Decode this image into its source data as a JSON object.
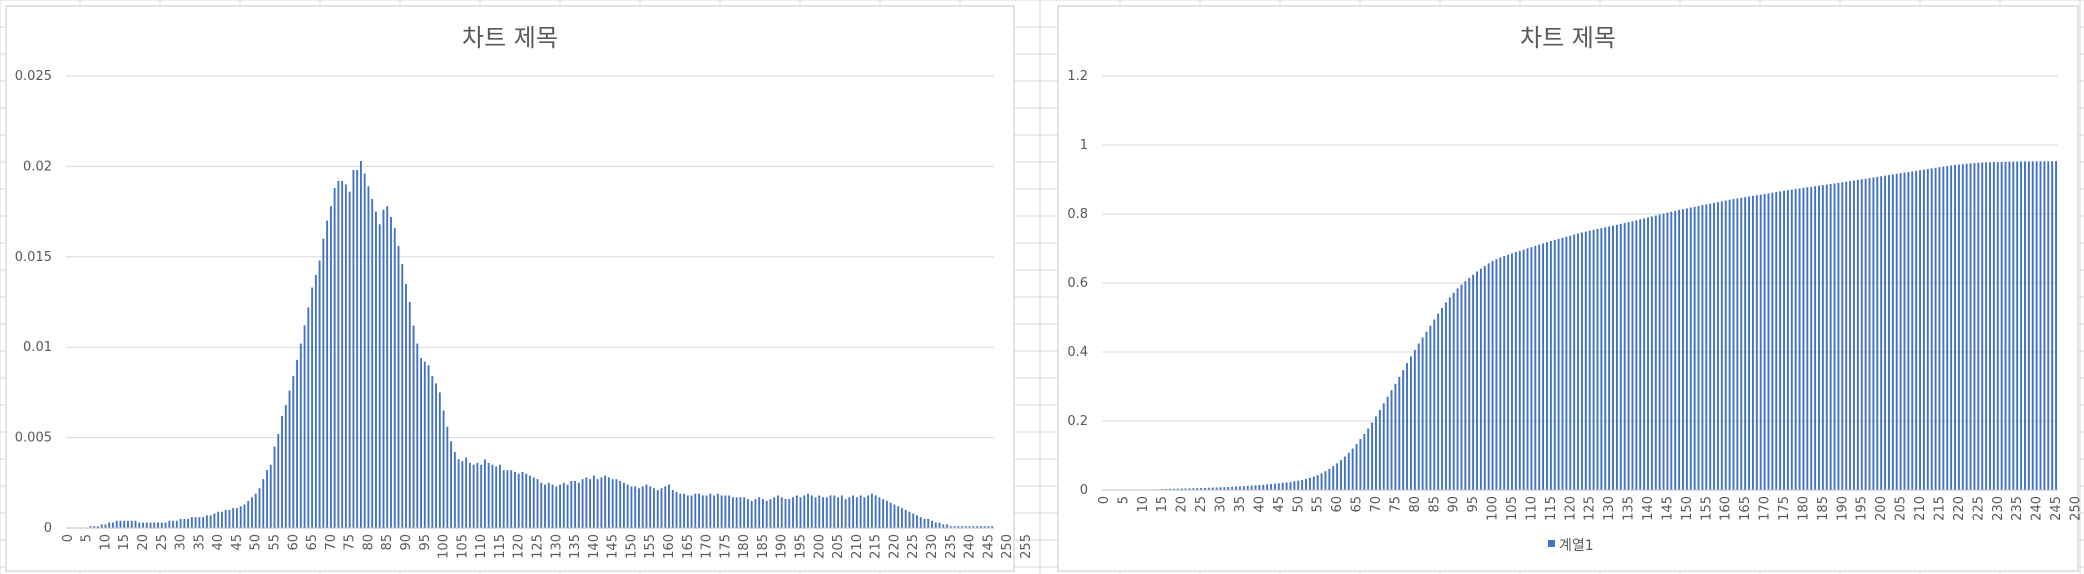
{
  "colors": {
    "bar": "#4472c4",
    "grid": "#d9d9d9",
    "text": "#595959",
    "sheet_grid": "#dddddd"
  },
  "chart_data": [
    {
      "type": "bar",
      "title": "차트 제목",
      "x_start": 0,
      "x_end": 255,
      "x_label_step": 5,
      "ylim": [
        0,
        0.025
      ],
      "yticks": [
        "0",
        "0.005",
        "0.01",
        "0.015",
        "0.02",
        "0.025"
      ],
      "grid": true,
      "legend": "none",
      "values": [
        0,
        0,
        0,
        0,
        0,
        0,
        0.0001,
        0.0001,
        0.0001,
        0.0002,
        0.0002,
        0.0003,
        0.0003,
        0.0004,
        0.0004,
        0.0004,
        0.0004,
        0.0004,
        0.0004,
        0.0003,
        0.0003,
        0.0003,
        0.0003,
        0.0003,
        0.0003,
        0.0003,
        0.0003,
        0.0004,
        0.0004,
        0.0004,
        0.0005,
        0.0005,
        0.0005,
        0.0006,
        0.0006,
        0.0006,
        0.0006,
        0.0007,
        0.0007,
        0.0008,
        0.0009,
        0.0009,
        0.001,
        0.001,
        0.0011,
        0.0011,
        0.0012,
        0.0013,
        0.0015,
        0.0017,
        0.0019,
        0.0022,
        0.0027,
        0.0032,
        0.0035,
        0.0045,
        0.0052,
        0.0062,
        0.0068,
        0.0076,
        0.0084,
        0.0093,
        0.0102,
        0.0112,
        0.0122,
        0.0133,
        0.014,
        0.0148,
        0.016,
        0.017,
        0.0178,
        0.0188,
        0.0192,
        0.0192,
        0.019,
        0.0186,
        0.0198,
        0.0198,
        0.0203,
        0.0196,
        0.0189,
        0.0182,
        0.0175,
        0.0168,
        0.0176,
        0.0178,
        0.0172,
        0.0166,
        0.0156,
        0.0146,
        0.0135,
        0.0125,
        0.0112,
        0.0102,
        0.0094,
        0.0092,
        0.009,
        0.0084,
        0.008,
        0.0075,
        0.0065,
        0.0056,
        0.0048,
        0.0042,
        0.0038,
        0.0037,
        0.0039,
        0.0036,
        0.0035,
        0.0036,
        0.0035,
        0.0038,
        0.0036,
        0.0035,
        0.0034,
        0.0035,
        0.0032,
        0.0032,
        0.0032,
        0.0031,
        0.003,
        0.0031,
        0.003,
        0.0029,
        0.0028,
        0.0027,
        0.0025,
        0.0024,
        0.0025,
        0.0024,
        0.0023,
        0.0024,
        0.0025,
        0.0024,
        0.0026,
        0.0026,
        0.0025,
        0.0027,
        0.0028,
        0.0027,
        0.0029,
        0.0027,
        0.0028,
        0.0029,
        0.0028,
        0.0027,
        0.0027,
        0.0026,
        0.0025,
        0.0024,
        0.0023,
        0.0023,
        0.0022,
        0.0023,
        0.0024,
        0.0023,
        0.0022,
        0.0021,
        0.0022,
        0.0023,
        0.0024,
        0.0021,
        0.002,
        0.0019,
        0.0019,
        0.0018,
        0.0018,
        0.0019,
        0.0019,
        0.0018,
        0.0018,
        0.0019,
        0.0018,
        0.0019,
        0.0018,
        0.0018,
        0.0018,
        0.0017,
        0.0017,
        0.0017,
        0.0017,
        0.0016,
        0.0015,
        0.0016,
        0.0017,
        0.0016,
        0.0015,
        0.0016,
        0.0017,
        0.0018,
        0.0017,
        0.0016,
        0.0016,
        0.0017,
        0.0018,
        0.0017,
        0.0018,
        0.0019,
        0.0018,
        0.0017,
        0.0018,
        0.0017,
        0.0017,
        0.0018,
        0.0018,
        0.0017,
        0.0018,
        0.0016,
        0.0017,
        0.0018,
        0.0017,
        0.0018,
        0.0017,
        0.0018,
        0.0019,
        0.0018,
        0.0017,
        0.0016,
        0.0015,
        0.0014,
        0.0013,
        0.0012,
        0.0011,
        0.001,
        0.0009,
        0.0008,
        0.0007,
        0.0006,
        0.0005,
        0.0005,
        0.0004,
        0.0003,
        0.0003,
        0.0002,
        0.0002,
        0.0001,
        0.0001,
        0.0001,
        0.0001,
        0.0001,
        0.0001,
        0.0001,
        0.0001,
        0.0001,
        0.0001,
        0.0001,
        0.0001
      ]
    },
    {
      "type": "bar",
      "title": "차트 제목",
      "x_start": 0,
      "x_end": 255,
      "x_label_step": 5,
      "ylim": [
        0,
        1.2
      ],
      "yticks": [
        "0",
        "0.2",
        "0.4",
        "0.6",
        "0.8",
        "1",
        "1.2"
      ],
      "grid": true,
      "legend": "bottom",
      "series": [
        {
          "name": "계열1",
          "values": [
            0,
            0,
            0,
            0,
            0,
            0,
            0.0001,
            0.0002,
            0.0003,
            0.0005,
            0.0007,
            0.001,
            0.0013,
            0.0017,
            0.0021,
            0.0025,
            0.0029,
            0.0033,
            0.0037,
            0.004,
            0.0043,
            0.0046,
            0.0049,
            0.0052,
            0.0055,
            0.0058,
            0.0061,
            0.0065,
            0.0069,
            0.0073,
            0.0078,
            0.0083,
            0.0088,
            0.0094,
            0.01,
            0.0106,
            0.0112,
            0.0119,
            0.0126,
            0.0134,
            0.0143,
            0.0152,
            0.0162,
            0.0172,
            0.0183,
            0.0194,
            0.0206,
            0.0219,
            0.0234,
            0.0251,
            0.027,
            0.0292,
            0.0319,
            0.0351,
            0.0386,
            0.0431,
            0.0483,
            0.0545,
            0.0613,
            0.0689,
            0.0773,
            0.0866,
            0.0968,
            0.108,
            0.1202,
            0.1335,
            0.1475,
            0.1623,
            0.1783,
            0.1953,
            0.2131,
            0.2319,
            0.2511,
            0.2703,
            0.2893,
            0.3079,
            0.3277,
            0.3475,
            0.3678,
            0.3874,
            0.4063,
            0.4245,
            0.442,
            0.4588,
            0.4764,
            0.4942,
            0.5114,
            0.528,
            0.5436,
            0.5582,
            0.5717,
            0.5842,
            0.5954,
            0.6056,
            0.615,
            0.6242,
            0.6332,
            0.6416,
            0.6496,
            0.6571,
            0.6636,
            0.6692,
            0.674,
            0.6782,
            0.682,
            0.6857,
            0.6896,
            0.6932,
            0.6967,
            0.7003,
            0.7038,
            0.7076,
            0.7112,
            0.7147,
            0.7181,
            0.7216,
            0.7248,
            0.728,
            0.7312,
            0.7343,
            0.7373,
            0.7404,
            0.7434,
            0.7463,
            0.7491,
            0.7518,
            0.7543,
            0.7567,
            0.7592,
            0.7616,
            0.7639,
            0.7663,
            0.7688,
            0.7712,
            0.7738,
            0.7764,
            0.7789,
            0.7816,
            0.7844,
            0.7871,
            0.79,
            0.7927,
            0.7955,
            0.7984,
            0.8012,
            0.8039,
            0.8066,
            0.8092,
            0.8117,
            0.8141,
            0.8164,
            0.8187,
            0.8209,
            0.8232,
            0.8256,
            0.8279,
            0.8301,
            0.8322,
            0.8344,
            0.8367,
            0.8391,
            0.8412,
            0.8432,
            0.8451,
            0.847,
            0.8488,
            0.8506,
            0.8525,
            0.8544,
            0.8562,
            0.858,
            0.8599,
            0.8617,
            0.8636,
            0.8654,
            0.8672,
            0.869,
            0.8707,
            0.8724,
            0.8741,
            0.8758,
            0.8774,
            0.8789,
            0.8805,
            0.8822,
            0.8838,
            0.8853,
            0.8869,
            0.8886,
            0.8904,
            0.8921,
            0.8937,
            0.8953,
            0.897,
            0.8988,
            0.9005,
            0.9023,
            0.9042,
            0.906,
            0.9077,
            0.9095,
            0.9112,
            0.9129,
            0.9147,
            0.9165,
            0.9182,
            0.92,
            0.9216,
            0.9233,
            0.9251,
            0.9268,
            0.9286,
            0.9303,
            0.9321,
            0.934,
            0.9358,
            0.9375,
            0.9391,
            0.9406,
            0.942,
            0.9433,
            0.9445,
            0.9456,
            0.9466,
            0.9475,
            0.9483,
            0.949,
            0.9496,
            0.9501,
            0.9506,
            0.951,
            0.9513,
            0.9516,
            0.9518,
            0.952,
            0.9521,
            0.9522,
            0.9523,
            0.9524,
            0.9525,
            0.9526,
            0.9527,
            0.9528,
            0.9529,
            0.953,
            0.9531
          ]
        }
      ]
    }
  ]
}
